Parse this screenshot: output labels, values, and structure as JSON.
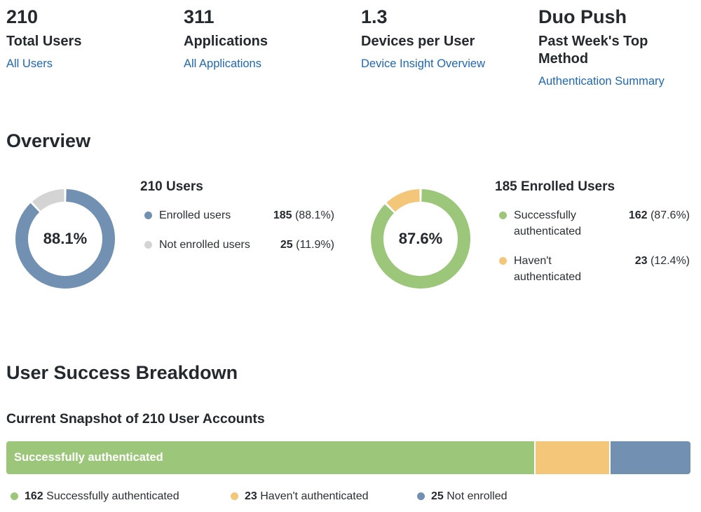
{
  "colors": {
    "enrolled": "#7190b2",
    "not_enrolled": "#d4d4d4",
    "success": "#9cc77b",
    "havent": "#f4c679",
    "link": "#1f67b3"
  },
  "stats": [
    {
      "value": "210",
      "label": "Total Users",
      "link": "All Users"
    },
    {
      "value": "311",
      "label": "Applications",
      "link": "All Applications"
    },
    {
      "value": "1.3",
      "label": "Devices per User",
      "link": "Device Insight Overview"
    },
    {
      "value": "Duo Push",
      "label": "Past Week's Top Method",
      "link": "Authentication Summary"
    }
  ],
  "overview": {
    "title": "Overview",
    "users_donut": {
      "center": "88.1%",
      "title": "210 Users",
      "items": [
        {
          "label": "Enrolled users",
          "count": "185",
          "pct": "(88.1%)",
          "fraction": 0.881
        },
        {
          "label": "Not enrolled users",
          "count": "25",
          "pct": "(11.9%)",
          "fraction": 0.119
        }
      ]
    },
    "enrolled_donut": {
      "center": "87.6%",
      "title": "185 Enrolled Users",
      "items": [
        {
          "label": "Successfully authenticated",
          "count": "162",
          "pct": "(87.6%)",
          "fraction": 0.876
        },
        {
          "label": "Haven't authenticated",
          "count": "23",
          "pct": "(12.4%)",
          "fraction": 0.124
        }
      ]
    }
  },
  "breakdown": {
    "title": "User Success Breakdown",
    "subtitle": "Current Snapshot of 210 User Accounts",
    "bar_label": "Successfully authenticated",
    "segments": [
      {
        "name": "Successfully authenticated",
        "count": "162",
        "value": 162
      },
      {
        "name": "Haven't authenticated",
        "count": "23",
        "value": 23
      },
      {
        "name": "Not enrolled",
        "count": "25",
        "value": 25
      }
    ]
  }
}
